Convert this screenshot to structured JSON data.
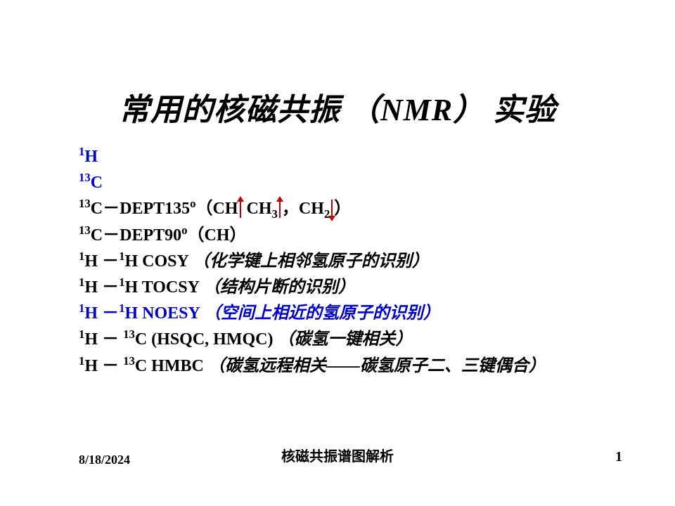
{
  "title": "常用的核磁共振 （NMR） 实验",
  "lines": {
    "l1_sup": "1",
    "l1_txt": "H",
    "l2_sup": "13",
    "l2_txt": "C",
    "l3_sup": "13",
    "l3_a": "C－DEPT135",
    "l3_deg": "o",
    "l3_b": "（CH",
    "l3_c": "  CH",
    "l3_sub3": "3",
    "l3_d": "，CH",
    "l3_sub2": "2",
    "l3_e": "）",
    "l4_sup": "13",
    "l4_a": "C－DEPT90",
    "l4_deg": "o",
    "l4_b": "（CH）",
    "l5_s1": "1",
    "l5_a": "H －",
    "l5_s2": "1",
    "l5_b": "H COSY",
    "l5_c": "（化学键上相邻氢原子的识别）",
    "l6_s1": "1",
    "l6_a": "H －",
    "l6_s2": "1",
    "l6_b": "H TOCSY",
    "l6_c": "（结构片断的识别）",
    "l7_s1": "1",
    "l7_a": "H －",
    "l7_s2": "1",
    "l7_b": "H NOESY",
    "l7_c": "（空间上相近的氢原子的识别）",
    "l8_s1": "1",
    "l8_a": "H － ",
    "l8_s2": "13",
    "l8_b": "C (HSQC, HMQC)",
    "l8_c": "（碳氢一键相关）",
    "l9_s1": "1",
    "l9_a": "H － ",
    "l9_s2": "13",
    "l9_b": "C HMBC",
    "l9_c": "（碳氢远程相关——碳氢原子二、三键偶合）"
  },
  "footer": {
    "date": "8/18/2024",
    "center": "核磁共振谱图解析",
    "page": "1"
  }
}
